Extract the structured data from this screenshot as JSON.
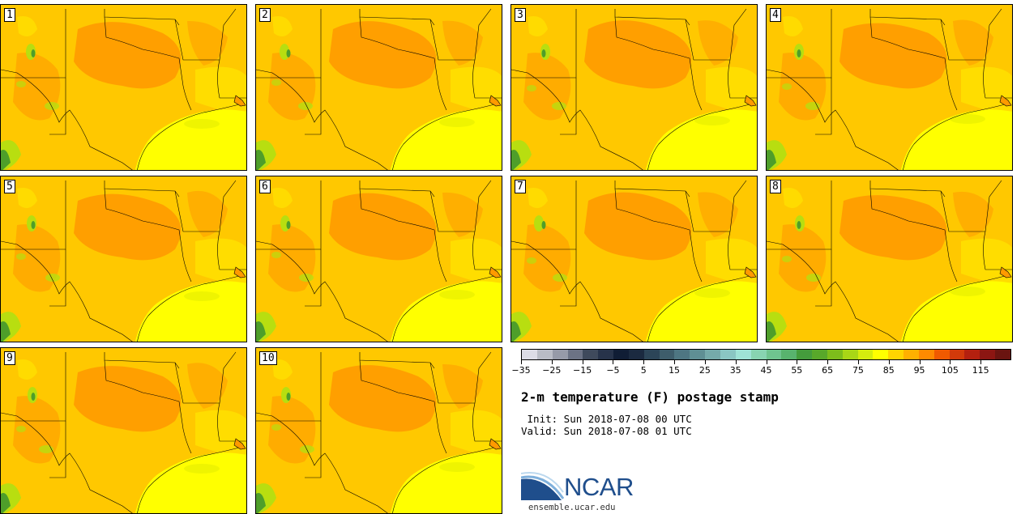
{
  "panels": [
    {
      "member": "1"
    },
    {
      "member": "2"
    },
    {
      "member": "3"
    },
    {
      "member": "4"
    },
    {
      "member": "5"
    },
    {
      "member": "6"
    },
    {
      "member": "7"
    },
    {
      "member": "8"
    },
    {
      "member": "9"
    },
    {
      "member": "10"
    }
  ],
  "colorbar": {
    "colors": [
      "#dcdce6",
      "#b9bcc6",
      "#969aa8",
      "#6c7385",
      "#3f4a5c",
      "#27334a",
      "#101d35",
      "#1b2a40",
      "#2c4558",
      "#3e5d6b",
      "#4e7682",
      "#5f8f94",
      "#75aaaa",
      "#8ac6c3",
      "#9fe3d6",
      "#88d4b1",
      "#6fc48f",
      "#58b36e",
      "#449c3c",
      "#58a82a",
      "#7dbd1b",
      "#a9d616",
      "#d5ec0e",
      "#ffff00",
      "#ffd400",
      "#ffb000",
      "#ff8a00",
      "#f05a00",
      "#d23a0a",
      "#b4200f",
      "#8c1612",
      "#6a1410"
    ],
    "tick_labels": [
      "−35",
      "−25",
      "−15",
      "−5",
      "5",
      "15",
      "25",
      "35",
      "45",
      "55",
      "65",
      "75",
      "85",
      "95",
      "105",
      "115"
    ]
  },
  "title": "2-m temperature (F) postage stamp",
  "init_line": " Init: Sun 2018-07-08 00 UTC",
  "valid_line": "Valid: Sun 2018-07-08 01 UTC",
  "logo_text": "NCAR",
  "url": "ensemble.ucar.edu",
  "colors": {
    "gulf": "#ffff00",
    "land_base": "#ffc800",
    "hot": "#ff9a00",
    "mild": "#ffe000",
    "cool": "#b8de10",
    "border": "#000000"
  }
}
